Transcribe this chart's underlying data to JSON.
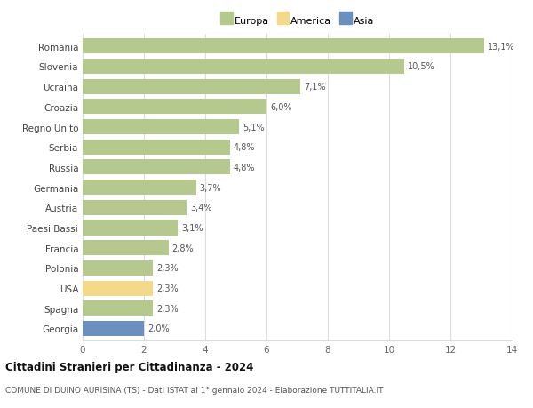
{
  "countries": [
    "Romania",
    "Slovenia",
    "Ucraina",
    "Croazia",
    "Regno Unito",
    "Serbia",
    "Russia",
    "Germania",
    "Austria",
    "Paesi Bassi",
    "Francia",
    "Polonia",
    "USA",
    "Spagna",
    "Georgia"
  ],
  "values": [
    13.1,
    10.5,
    7.1,
    6.0,
    5.1,
    4.8,
    4.8,
    3.7,
    3.4,
    3.1,
    2.8,
    2.3,
    2.3,
    2.3,
    2.0
  ],
  "labels": [
    "13,1%",
    "10,5%",
    "7,1%",
    "6,0%",
    "5,1%",
    "4,8%",
    "4,8%",
    "3,7%",
    "3,4%",
    "3,1%",
    "2,8%",
    "2,3%",
    "2,3%",
    "2,3%",
    "2,0%"
  ],
  "categories": [
    "Europa",
    "Europa",
    "Europa",
    "Europa",
    "Europa",
    "Europa",
    "Europa",
    "Europa",
    "Europa",
    "Europa",
    "Europa",
    "Europa",
    "America",
    "Europa",
    "Asia"
  ],
  "color_europa": "#b5c98e",
  "color_america": "#f5d98b",
  "color_asia": "#6b8fbf",
  "legend_europa": "Europa",
  "legend_america": "America",
  "legend_asia": "Asia",
  "title": "Cittadini Stranieri per Cittadinanza - 2024",
  "subtitle": "COMUNE DI DUINO AURISINA (TS) - Dati ISTAT al 1° gennaio 2024 - Elaborazione TUTTITALIA.IT",
  "xlim": [
    0,
    14
  ],
  "xticks": [
    0,
    2,
    4,
    6,
    8,
    10,
    12,
    14
  ],
  "bg_color": "#ffffff",
  "grid_color": "#dddddd"
}
